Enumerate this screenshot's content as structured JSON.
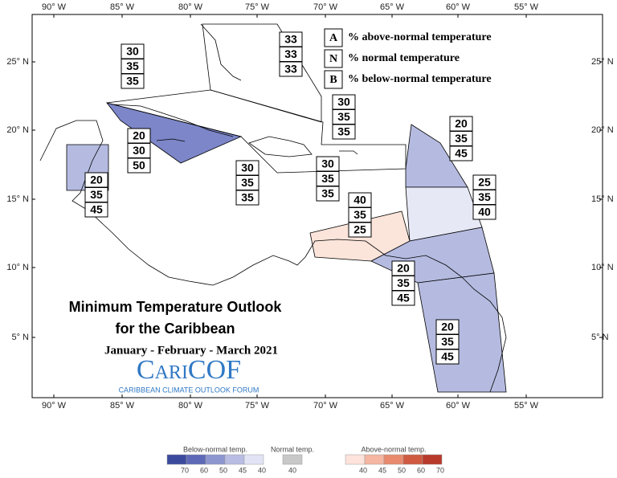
{
  "axes": {
    "lon_labels": [
      "90° W",
      "85° W",
      "80° W",
      "75° W",
      "70° W",
      "65° W",
      "60° W",
      "55° W"
    ],
    "lat_labels": [
      "25° N",
      "20° N",
      "15° N",
      "10° N",
      "5° N"
    ]
  },
  "key": [
    {
      "letter": "A",
      "text": "% above-normal temperature"
    },
    {
      "letter": "N",
      "text": "% normal temperature"
    },
    {
      "letter": "B",
      "text": "% below-normal temperature"
    }
  ],
  "regions": [
    {
      "probs": [
        30,
        35,
        35
      ],
      "color": "#ffffff"
    },
    {
      "probs": [
        33,
        33,
        33
      ],
      "color": "#ffffff"
    },
    {
      "probs": [
        30,
        35,
        35
      ],
      "color": "#ffffff"
    },
    {
      "probs": [
        20,
        30,
        50
      ],
      "color": "#7c86c8"
    },
    {
      "probs": [
        20,
        35,
        45
      ],
      "color": "#b5bbe0"
    },
    {
      "probs": [
        30,
        35,
        35
      ],
      "color": "#ffffff"
    },
    {
      "probs": [
        30,
        35,
        35
      ],
      "color": "#ffffff"
    },
    {
      "probs": [
        20,
        35,
        45
      ],
      "color": "#b5bbe0"
    },
    {
      "probs": [
        25,
        35,
        40
      ],
      "color": "#e6e8f6"
    },
    {
      "probs": [
        40,
        35,
        25
      ],
      "color": "#fbe4da"
    },
    {
      "probs": [
        20,
        35,
        45
      ],
      "color": "#b5bbe0"
    },
    {
      "probs": [
        20,
        35,
        45
      ],
      "color": "#b5bbe0"
    }
  ],
  "title": {
    "line1": "Minimum Temperature Outlook",
    "line2": "for the Caribbean",
    "period": "January - February - March 2021"
  },
  "logo": {
    "name": "CariCOF",
    "tagline": "CARIBBEAN CLIMATE OUTLOOK FORUM"
  },
  "colorbar": [
    {
      "label": "Below-normal temp.",
      "ticks": [
        "70",
        "60",
        "50",
        "45",
        "40"
      ],
      "colors": [
        "#3c4a9e",
        "#5e6ab8",
        "#8e96d0",
        "#b9bde3",
        "#e2e4f5"
      ]
    },
    {
      "label": "Normal temp.",
      "ticks": [
        "40"
      ],
      "colors": [
        "#c8c8c8"
      ]
    },
    {
      "label": "Above-normal temp.",
      "ticks": [
        "40",
        "45",
        "50",
        "60",
        "70"
      ],
      "colors": [
        "#fde3dc",
        "#f5b6a2",
        "#e98a6e",
        "#cf5a40",
        "#b8392a"
      ]
    }
  ]
}
